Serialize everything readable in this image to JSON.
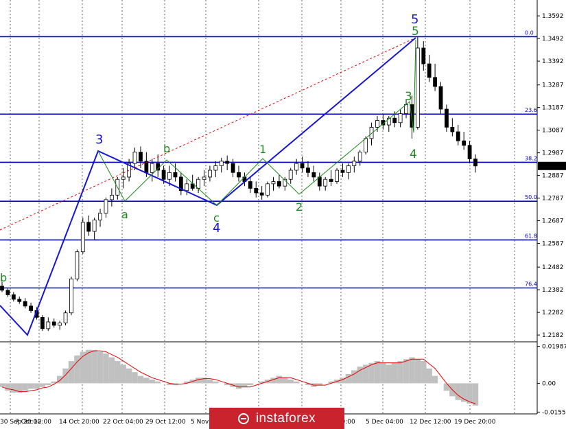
{
  "chart_data": {
    "type": "candlestick",
    "symbol_last_price": "1.2929",
    "price_axis": {
      "ticks": [
        "1.3592",
        "1.3492",
        "1.3392",
        "1.3287",
        "1.3187",
        "1.3087",
        "1.2987",
        "1.2887",
        "1.2787",
        "1.2687",
        "1.2587",
        "1.2482",
        "1.2382",
        "1.2282",
        "1.2182"
      ],
      "range": [
        1.2155,
        1.365
      ]
    },
    "time_axis": {
      "labels": [
        "30 Sep 20:00",
        "7 Oct 12:00",
        "14 Oct 20:00",
        "22 Oct 04:00",
        "29 Oct 12:00",
        "5 Nov 20:00",
        "27 Nov 20:00",
        "5 Dec 04:00",
        "12 Dec 12:00",
        "19 Dec 20:00"
      ]
    },
    "fibonacci": {
      "levels": [
        {
          "label": "0.0",
          "price": 1.35
        },
        {
          "label": "23.6",
          "price": 1.3158
        },
        {
          "label": "38.2",
          "price": 1.2945
        },
        {
          "label": "50.0",
          "price": 1.2773
        },
        {
          "label": "61.8",
          "price": 1.2602
        },
        {
          "label": "76.4",
          "price": 1.239
        }
      ],
      "color": "#0000cc"
    },
    "wave_labels_major": [
      "5",
      "3",
      "4"
    ],
    "wave_labels_minor": [
      "5",
      "3",
      "4",
      "b",
      "a",
      "c",
      "1",
      "2",
      "b"
    ],
    "indicator": {
      "ticks": [
        "0.01987",
        "0.00",
        "-0.01551"
      ],
      "range": [
        -0.0165,
        0.0205
      ],
      "bar_color": "#c0c0c0",
      "line_color": "#e60000"
    },
    "price_series": [
      [
        1.2398,
        1.2418,
        1.2372,
        1.238
      ],
      [
        1.238,
        1.239,
        1.235,
        1.236
      ],
      [
        1.236,
        1.2372,
        1.233,
        1.234
      ],
      [
        1.234,
        1.2352,
        1.232,
        1.233
      ],
      [
        1.233,
        1.2345,
        1.23,
        1.231
      ],
      [
        1.231,
        1.2325,
        1.228,
        1.229
      ],
      [
        1.229,
        1.2305,
        1.225,
        1.226
      ],
      [
        1.226,
        1.227,
        1.22,
        1.221
      ],
      [
        1.221,
        1.226,
        1.22,
        1.224
      ],
      [
        1.224,
        1.2255,
        1.2215,
        1.2225
      ],
      [
        1.2225,
        1.2245,
        1.2205,
        1.2235
      ],
      [
        1.2235,
        1.229,
        1.2225,
        1.228
      ],
      [
        1.228,
        1.244,
        1.227,
        1.243
      ],
      [
        1.243,
        1.256,
        1.242,
        1.255
      ],
      [
        1.255,
        1.27,
        1.254,
        1.268
      ],
      [
        1.268,
        1.271,
        1.262,
        1.264
      ],
      [
        1.264,
        1.27,
        1.26,
        1.269
      ],
      [
        1.269,
        1.274,
        1.266,
        1.272
      ],
      [
        1.272,
        1.279,
        1.27,
        1.278
      ],
      [
        1.278,
        1.283,
        1.275,
        1.28
      ],
      [
        1.28,
        1.288,
        1.278,
        1.287
      ],
      [
        1.287,
        1.292,
        1.283,
        1.288
      ],
      [
        1.288,
        1.296,
        1.286,
        1.294
      ],
      [
        1.294,
        1.301,
        1.291,
        1.299
      ],
      [
        1.299,
        1.3015,
        1.292,
        1.295
      ],
      [
        1.295,
        1.299,
        1.288,
        1.29
      ],
      [
        1.29,
        1.296,
        1.286,
        1.294
      ],
      [
        1.294,
        1.298,
        1.288,
        1.291
      ],
      [
        1.291,
        1.293,
        1.285,
        1.287
      ],
      [
        1.287,
        1.293,
        1.284,
        1.29
      ],
      [
        1.29,
        1.294,
        1.286,
        1.288
      ],
      [
        1.288,
        1.29,
        1.28,
        1.282
      ],
      [
        1.282,
        1.287,
        1.28,
        1.285
      ],
      [
        1.285,
        1.289,
        1.282,
        1.283
      ],
      [
        1.283,
        1.288,
        1.281,
        1.287
      ],
      [
        1.287,
        1.291,
        1.284,
        1.288
      ],
      [
        1.288,
        1.293,
        1.286,
        1.291
      ],
      [
        1.291,
        1.295,
        1.288,
        1.293
      ],
      [
        1.293,
        1.2965,
        1.29,
        1.295
      ],
      [
        1.295,
        1.2975,
        1.291,
        1.294
      ],
      [
        1.294,
        1.296,
        1.288,
        1.29
      ],
      [
        1.29,
        1.293,
        1.286,
        1.288
      ],
      [
        1.288,
        1.29,
        1.284,
        1.286
      ],
      [
        1.286,
        1.288,
        1.281,
        1.283
      ],
      [
        1.283,
        1.286,
        1.279,
        1.281
      ],
      [
        1.281,
        1.284,
        1.278,
        1.28
      ],
      [
        1.28,
        1.286,
        1.279,
        1.285
      ],
      [
        1.285,
        1.288,
        1.282,
        1.286
      ],
      [
        1.286,
        1.289,
        1.283,
        1.284
      ],
      [
        1.284,
        1.288,
        1.282,
        1.287
      ],
      [
        1.287,
        1.292,
        1.285,
        1.291
      ],
      [
        1.291,
        1.296,
        1.289,
        1.294
      ],
      [
        1.294,
        1.297,
        1.29,
        1.292
      ],
      [
        1.292,
        1.295,
        1.288,
        1.29
      ],
      [
        1.29,
        1.293,
        1.286,
        1.288
      ],
      [
        1.288,
        1.29,
        1.282,
        1.284
      ],
      [
        1.284,
        1.288,
        1.282,
        1.287
      ],
      [
        1.287,
        1.291,
        1.284,
        1.286
      ],
      [
        1.286,
        1.292,
        1.285,
        1.291
      ],
      [
        1.291,
        1.294,
        1.288,
        1.29
      ],
      [
        1.29,
        1.294,
        1.287,
        1.293
      ],
      [
        1.293,
        1.297,
        1.29,
        1.295
      ],
      [
        1.295,
        1.3,
        1.293,
        1.299
      ],
      [
        1.299,
        1.306,
        1.298,
        1.305
      ],
      [
        1.305,
        1.312,
        1.302,
        1.31
      ],
      [
        1.31,
        1.315,
        1.308,
        1.313
      ],
      [
        1.313,
        1.316,
        1.309,
        1.311
      ],
      [
        1.311,
        1.315,
        1.308,
        1.314
      ],
      [
        1.314,
        1.317,
        1.31,
        1.312
      ],
      [
        1.312,
        1.318,
        1.31,
        1.316
      ],
      [
        1.316,
        1.322,
        1.314,
        1.32
      ],
      [
        1.32,
        1.324,
        1.305,
        1.31
      ],
      [
        1.31,
        1.35,
        1.309,
        1.345
      ],
      [
        1.345,
        1.348,
        1.335,
        1.338
      ],
      [
        1.338,
        1.342,
        1.33,
        1.332
      ],
      [
        1.332,
        1.338,
        1.326,
        1.328
      ],
      [
        1.328,
        1.33,
        1.316,
        1.318
      ],
      [
        1.318,
        1.32,
        1.308,
        1.31
      ],
      [
        1.31,
        1.314,
        1.306,
        1.308
      ],
      [
        1.308,
        1.311,
        1.302,
        1.304
      ],
      [
        1.304,
        1.308,
        1.3,
        1.302
      ],
      [
        1.302,
        1.304,
        1.294,
        1.296
      ],
      [
        1.296,
        1.298,
        1.29,
        1.2929
      ]
    ],
    "indicator_series": [
      -0.002,
      -0.004,
      -0.005,
      -0.005,
      -0.004,
      -0.003,
      -0.003,
      -0.002,
      -0.001,
      0.001,
      0.004,
      0.008,
      0.012,
      0.015,
      0.017,
      0.018,
      0.018,
      0.017,
      0.016,
      0.014,
      0.012,
      0.01,
      0.008,
      0.006,
      0.004,
      0.003,
      0.002,
      0.001,
      0.0,
      -0.001,
      -0.001,
      0.0,
      0.001,
      0.002,
      0.003,
      0.003,
      0.002,
      0.001,
      0.0,
      -0.001,
      -0.002,
      -0.003,
      -0.002,
      -0.001,
      0.0,
      0.001,
      0.002,
      0.003,
      0.004,
      0.003,
      0.002,
      0.001,
      0.0,
      -0.001,
      -0.002,
      -0.001,
      0.0,
      0.001,
      0.002,
      0.003,
      0.005,
      0.007,
      0.009,
      0.01,
      0.011,
      0.012,
      0.011,
      0.01,
      0.011,
      0.012,
      0.013,
      0.014,
      0.013,
      0.012,
      0.008,
      0.004,
      0.0,
      -0.004,
      -0.007,
      -0.009,
      -0.01,
      -0.011,
      -0.012
    ]
  },
  "brand": {
    "name": "instaforex"
  }
}
